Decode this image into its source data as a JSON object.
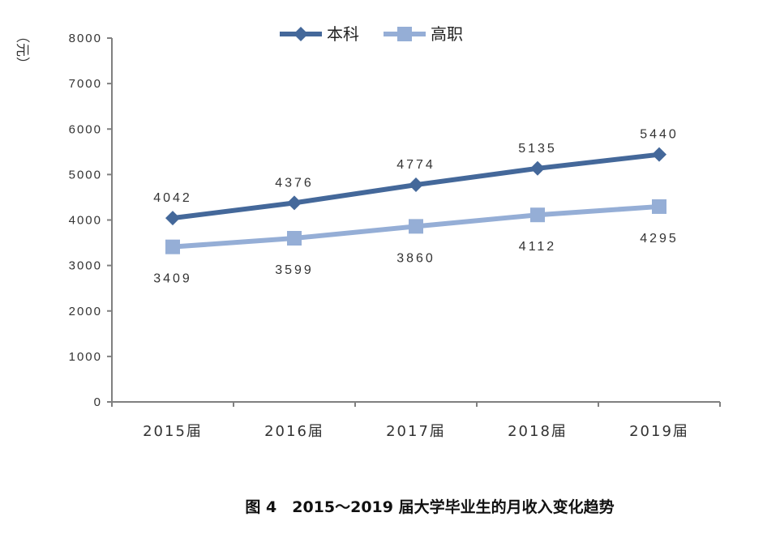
{
  "chart_data": {
    "type": "line",
    "caption": "图 4　2015～2019 届大学毕业生的月收入变化趋势",
    "ylabel": "（元）",
    "categories": [
      "2015届",
      "2016届",
      "2017届",
      "2018届",
      "2019届"
    ],
    "ylim": [
      0,
      8000
    ],
    "yticks": [
      "0",
      "1000",
      "2000",
      "3000",
      "4000",
      "5000",
      "6000",
      "7000",
      "8000"
    ],
    "legend_position": "top-center",
    "grid": false,
    "series": [
      {
        "name": "本科",
        "values": [
          4042,
          4376,
          4774,
          5135,
          5440
        ],
        "color": "#44689a",
        "marker": "diamond",
        "label_position": "above"
      },
      {
        "name": "高职",
        "values": [
          3409,
          3599,
          3860,
          4112,
          4295
        ],
        "color": "#95aed6",
        "marker": "square",
        "label_position": "below"
      }
    ]
  }
}
